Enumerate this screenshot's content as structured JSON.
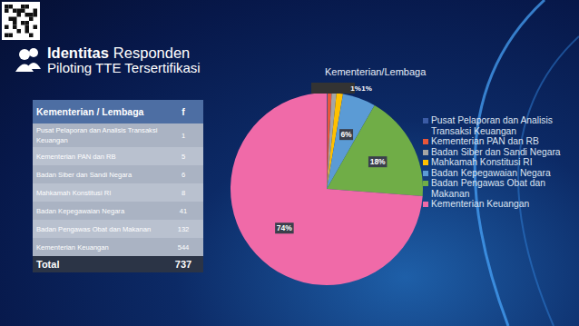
{
  "header": {
    "title_bold": "Identitas",
    "title_rest": "Responden",
    "subtitle": "Piloting TTE Tersertifikasi"
  },
  "table": {
    "columns": [
      "Kementerian / Lembaga",
      "f"
    ],
    "rows": [
      [
        "Pusat Pelaporan dan Analisis Transaksi Keuangan",
        1
      ],
      [
        "Kementerian PAN dan RB",
        5
      ],
      [
        "Badan Siber dan Sandi Negara",
        6
      ],
      [
        "Mahkamah Konstitusi RI",
        8
      ],
      [
        "Badan Kepegawaian Negara",
        41
      ],
      [
        "Badan Pengawas Obat dan Makanan",
        132
      ],
      [
        "Kementerian Keuangan",
        544
      ]
    ],
    "total": [
      "Total",
      737
    ]
  },
  "chart_data": {
    "type": "pie",
    "title": "Kementerian/Lembaga",
    "categories": [
      "Pusat Pelaporan dan Analisis Transaksi Keuangan",
      "Kementerian PAN dan RB",
      "Badan Siber dan Sandi Negara",
      "Mahkamah Konstitusi RI",
      "Badan Kepegawaian Negara",
      "Badan Pengawas Obat dan Makanan",
      "Kementerian Keuangan"
    ],
    "values": [
      0.14,
      0.68,
      0.81,
      1.09,
      5.56,
      17.91,
      73.81
    ],
    "value_labels": [
      null,
      null,
      "1%",
      "1%",
      "6%",
      "18%",
      "74%"
    ],
    "colors": [
      "#3b5ba5",
      "#e8563a",
      "#a5a5a5",
      "#ffc000",
      "#5b9bd5",
      "#70ad47",
      "#f06aa8"
    ],
    "data_labels": true,
    "legend": "right"
  }
}
